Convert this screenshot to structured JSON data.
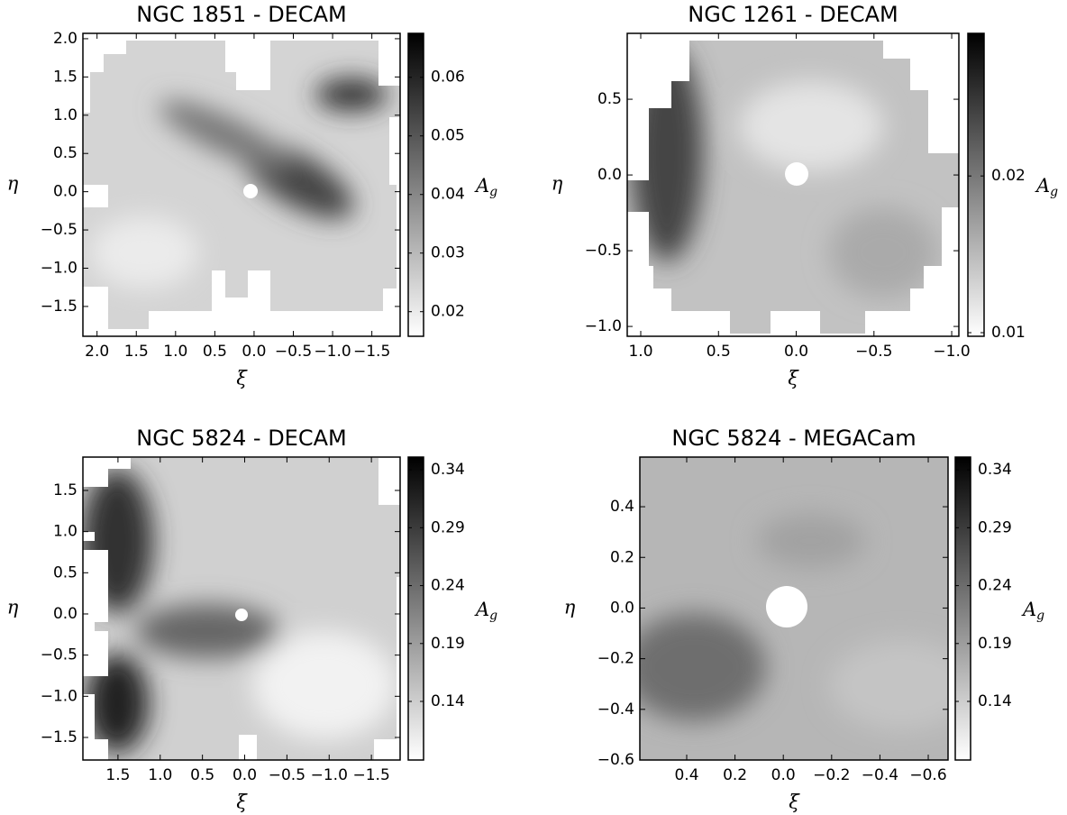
{
  "chart_data": [
    {
      "type": "heatmap",
      "title": "NGC 1851 - DECAM",
      "xlabel": "ξ",
      "ylabel": "η",
      "colorbar_label": "A",
      "colorbar_label_sub": "g",
      "xlim": [
        2.18,
        -1.86
      ],
      "ylim": [
        -1.89,
        2.07
      ],
      "xticks": [
        {
          "value": 2,
          "label": "2.0"
        },
        1.5,
        {
          "value": 1,
          "label": "1.0"
        },
        0.5,
        {
          "value": 0,
          "label": "0.0"
        },
        {
          "value": -0.5,
          "label": "−0.5"
        },
        {
          "value": -1,
          "label": "−1.0"
        },
        {
          "value": -1.5,
          "label": "−1.5"
        }
      ],
      "yticks": [
        {
          "value": -1.5,
          "label": "−1.5"
        },
        {
          "value": -1,
          "label": "−1.0"
        },
        {
          "value": -0.5,
          "label": "−0.5"
        },
        {
          "value": 0,
          "label": "0.0"
        },
        0.5,
        {
          "value": 1,
          "label": "1.0"
        },
        1.5,
        {
          "value": 2,
          "label": "2.0"
        }
      ],
      "clim": [
        0.0158,
        0.0675
      ],
      "cticks": [
        0.02,
        0.03,
        0.04,
        0.05,
        0.06
      ]
    },
    {
      "type": "heatmap",
      "title": "NGC 1261 - DECAM",
      "xlabel": "ξ",
      "ylabel": "η",
      "colorbar_label": "A",
      "colorbar_label_sub": "g",
      "xlim": [
        1.087,
        -1.046
      ],
      "ylim": [
        -1.065,
        0.935
      ],
      "xticks": [
        {
          "value": 1,
          "label": "1.0"
        },
        0.5,
        {
          "value": 0,
          "label": "0.0"
        },
        {
          "value": -0.5,
          "label": "−0.5"
        },
        {
          "value": -1,
          "label": "−1.0"
        }
      ],
      "yticks": [
        {
          "value": -1,
          "label": "−1.0"
        },
        {
          "value": -0.5,
          "label": "−0.5"
        },
        {
          "value": 0,
          "label": "0.0"
        },
        0.5
      ],
      "clim": [
        0.00977,
        0.0291
      ],
      "cticks": [
        0.01,
        0.02
      ]
    },
    {
      "type": "heatmap",
      "title": "NGC 5824 - DECAM",
      "xlabel": "ξ",
      "ylabel": "η",
      "colorbar_label": "A",
      "colorbar_label_sub": "g",
      "xlim": [
        1.915,
        -1.84
      ],
      "ylim": [
        -1.774,
        1.905
      ],
      "xticks": [
        1.5,
        {
          "value": 1,
          "label": "1.0"
        },
        0.5,
        {
          "value": 0,
          "label": "0.0"
        },
        {
          "value": -0.5,
          "label": "−0.5"
        },
        {
          "value": -1,
          "label": "−1.0"
        },
        {
          "value": -1.5,
          "label": "−1.5"
        }
      ],
      "yticks": [
        {
          "value": -1.5,
          "label": "−1.5"
        },
        {
          "value": -1,
          "label": "−1.0"
        },
        {
          "value": -0.5,
          "label": "−0.5"
        },
        {
          "value": 0,
          "label": "0.0"
        },
        0.5,
        {
          "value": 1,
          "label": "1.0"
        },
        1.5
      ],
      "clim": [
        0.0894,
        0.351
      ],
      "cticks": [
        0.14,
        0.19,
        0.24,
        0.29,
        0.34
      ]
    },
    {
      "type": "heatmap",
      "title": "NGC 5824 - MEGACam",
      "xlabel": "ξ",
      "ylabel": "η",
      "colorbar_label": "A",
      "colorbar_label_sub": "g",
      "xlim": [
        0.594,
        -0.682
      ],
      "ylim": [
        -0.6,
        0.596
      ],
      "xticks": [
        0.4,
        0.2,
        {
          "value": 0,
          "label": "0.0"
        },
        {
          "value": -0.2,
          "label": "−0.2"
        },
        {
          "value": -0.4,
          "label": "−0.4"
        },
        {
          "value": -0.6,
          "label": "−0.6"
        }
      ],
      "yticks": [
        {
          "value": -0.6,
          "label": "−0.6"
        },
        {
          "value": -0.4,
          "label": "−0.4"
        },
        {
          "value": -0.2,
          "label": "−0.2"
        },
        {
          "value": 0,
          "label": "0.0"
        },
        0.2,
        0.4
      ],
      "clim": [
        0.0894,
        0.351
      ],
      "cticks": [
        0.14,
        0.19,
        0.24,
        0.29,
        0.34
      ]
    }
  ]
}
